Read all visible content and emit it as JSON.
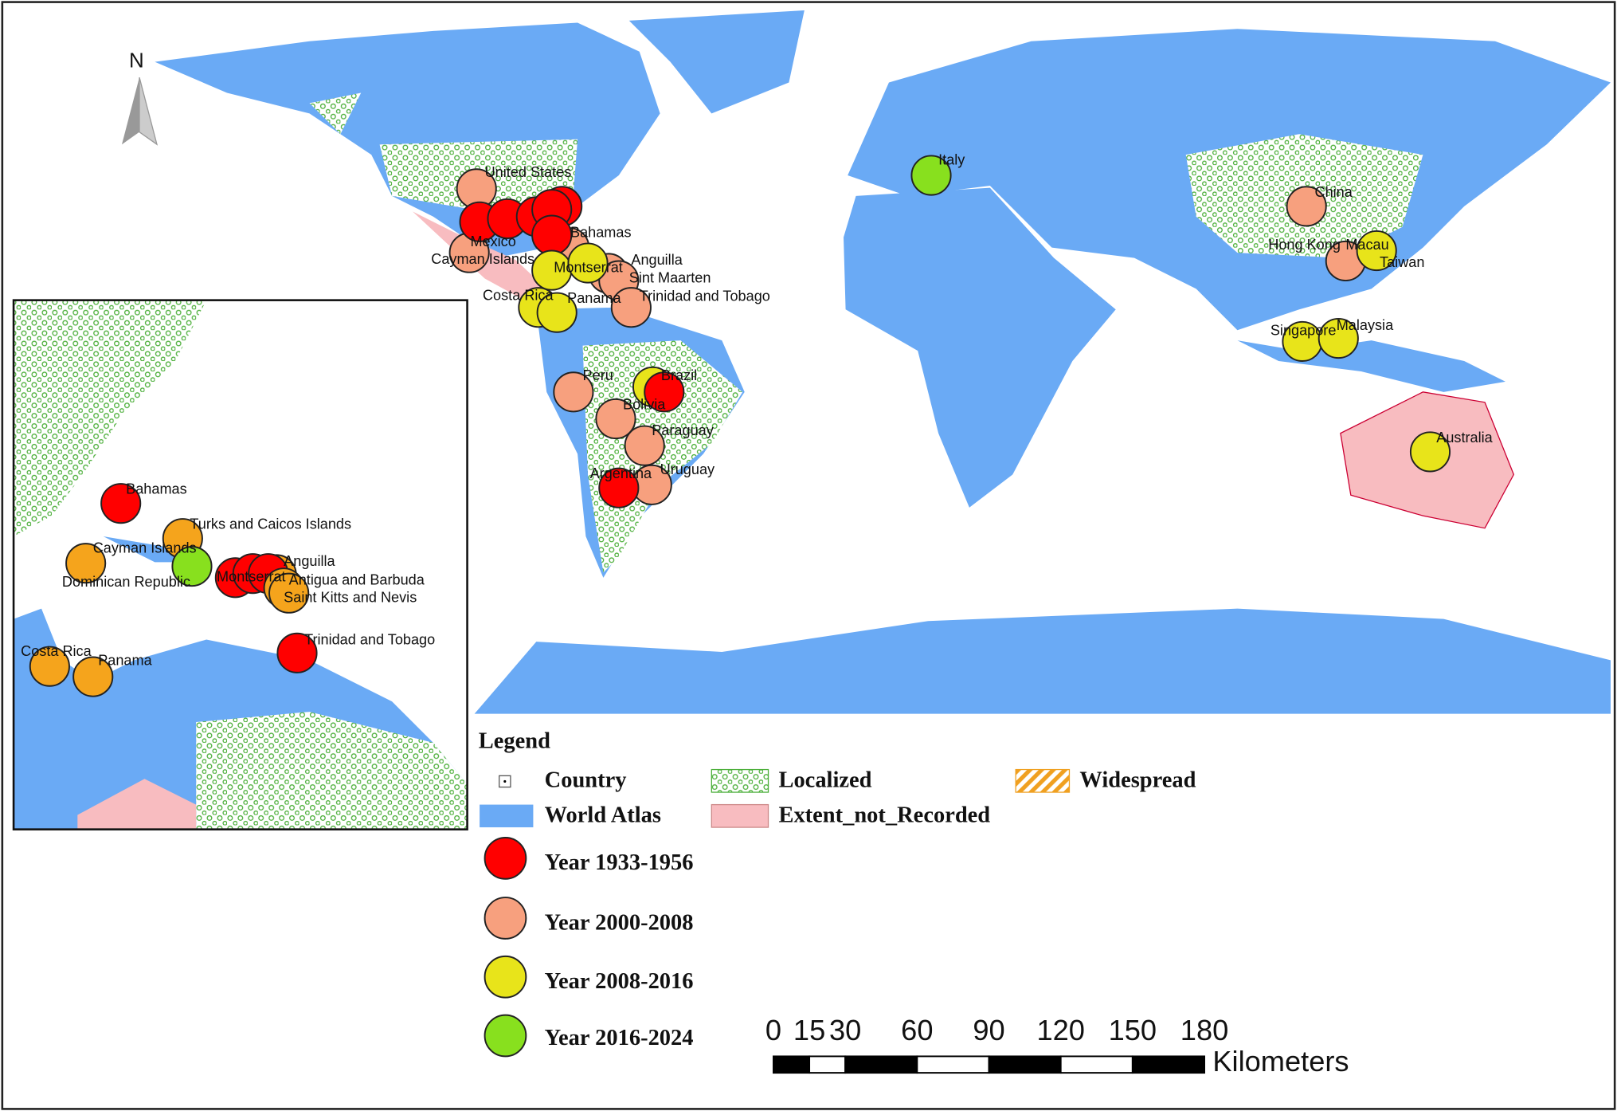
{
  "north_arrow": "N",
  "main_map": {
    "labels": [
      "United States",
      "Mexico",
      "Cayman Islands",
      "Bahamas",
      "Montserrat",
      "Anguilla",
      "Sint Maarten",
      "Costa Rica",
      "Panama",
      "Trinidad and Tobago",
      "Italy",
      "China",
      "Hong Kong",
      "Macau",
      "Taiwan",
      "Singapore",
      "Malaysia",
      "Peru",
      "Brazil",
      "Bolivia",
      "Paraguay",
      "Argentina",
      "Uruguay",
      "Australia"
    ]
  },
  "inset_map": {
    "labels": [
      "Bahamas",
      "Turks and Caicos Islands",
      "Cayman Islands",
      "Dominican Republic",
      "Montserrat",
      "Anguilla",
      "Antigua and Barbuda",
      "Saint Kitts and Nevis",
      "Trinidad and Tobago",
      "Costa Rica",
      "Panama"
    ],
    "marker_color": "#f5a41c"
  },
  "legend": {
    "title": "Legend",
    "items": [
      {
        "label": "Country",
        "color": "#000000"
      },
      {
        "label": "World Atlas",
        "color": "#6aaaf5"
      },
      {
        "label": "Localized",
        "color": "#4caf3a"
      },
      {
        "label": "Widespread",
        "color": "#f0a020"
      },
      {
        "label": "Extent_not_Recorded",
        "color": "#f8bcc0"
      },
      {
        "label": "Year 1933-1956",
        "color": "#ff0000"
      },
      {
        "label": "Year 2000-2008",
        "color": "#f7a07e"
      },
      {
        "label": "Year 2008-2016",
        "color": "#e8e41a"
      },
      {
        "label": "Year 2016-2024",
        "color": "#88e01e"
      }
    ]
  },
  "scale_bar": {
    "ticks": [
      0,
      15,
      30,
      60,
      90,
      120,
      150,
      180
    ],
    "unit": "Kilometers"
  }
}
